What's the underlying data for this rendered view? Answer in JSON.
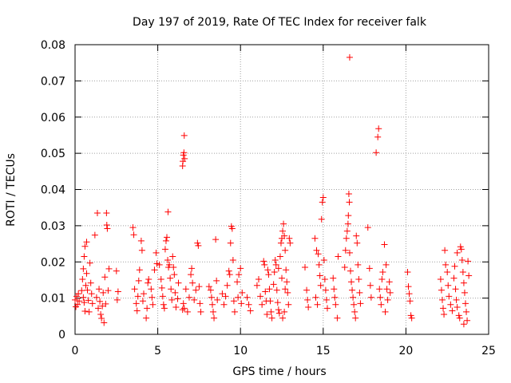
{
  "chart_data": {
    "type": "scatter",
    "title": "Day 197 of 2019, Rate Of TEC Index for receiver falk",
    "xlabel": "GPS time / hours",
    "ylabel": "ROTI / TECUs",
    "xlim": [
      0,
      25
    ],
    "ylim": [
      0,
      0.08
    ],
    "xticks": [
      0,
      5,
      10,
      15,
      20,
      25
    ],
    "xtick_labels": [
      "0",
      "5",
      "10",
      "15",
      "20",
      "25"
    ],
    "yticks": [
      0,
      0.01,
      0.02,
      0.03,
      0.04,
      0.05,
      0.06,
      0.07,
      0.08
    ],
    "ytick_labels": [
      "0",
      "0.01",
      "0.02",
      "0.03",
      "0.04",
      "0.05",
      "0.06",
      "0.07",
      "0.08"
    ],
    "grid": true,
    "marker": "+",
    "marker_color": "#ff0000",
    "series": [
      {
        "points": [
          [
            0.0,
            0.0095
          ],
          [
            0.1,
            0.0105
          ],
          [
            0.15,
            0.0082
          ],
          [
            0.2,
            0.0112
          ],
          [
            0.25,
            0.0092
          ],
          [
            0.05,
            0.0076
          ],
          [
            0.4,
            0.0121
          ],
          [
            0.45,
            0.0152
          ],
          [
            0.5,
            0.0181
          ],
          [
            0.55,
            0.0215
          ],
          [
            0.6,
            0.0243
          ],
          [
            0.7,
            0.0255
          ],
          [
            0.5,
            0.0102
          ],
          [
            0.55,
            0.0088
          ],
          [
            0.6,
            0.0064
          ],
          [
            0.65,
            0.0135
          ],
          [
            0.7,
            0.0168
          ],
          [
            0.75,
            0.0122
          ],
          [
            0.8,
            0.0094
          ],
          [
            0.85,
            0.0062
          ],
          [
            0.9,
            0.0197
          ],
          [
            0.95,
            0.0142
          ],
          [
            1.0,
            0.0112
          ],
          [
            1.05,
            0.0085
          ],
          [
            1.2,
            0.0274
          ],
          [
            1.35,
            0.0335
          ],
          [
            1.3,
            0.0102
          ],
          [
            1.4,
            0.0072
          ],
          [
            1.45,
            0.0125
          ],
          [
            1.5,
            0.0091
          ],
          [
            1.55,
            0.0055
          ],
          [
            1.6,
            0.0044
          ],
          [
            1.65,
            0.0078
          ],
          [
            1.7,
            0.0115
          ],
          [
            1.75,
            0.0032
          ],
          [
            1.8,
            0.0158
          ],
          [
            1.9,
            0.0335
          ],
          [
            1.92,
            0.0302
          ],
          [
            1.95,
            0.0292
          ],
          [
            2.0,
            0.0121
          ],
          [
            2.05,
            0.0181
          ],
          [
            1.85,
            0.0084
          ],
          [
            2.5,
            0.0175
          ],
          [
            2.6,
            0.0118
          ],
          [
            2.55,
            0.0095
          ],
          [
            3.5,
            0.0295
          ],
          [
            3.55,
            0.0275
          ],
          [
            3.6,
            0.0125
          ],
          [
            3.7,
            0.0085
          ],
          [
            3.75,
            0.0065
          ],
          [
            3.8,
            0.0105
          ],
          [
            3.85,
            0.0148
          ],
          [
            3.9,
            0.0178
          ],
          [
            4.0,
            0.0258
          ],
          [
            4.05,
            0.0232
          ],
          [
            4.1,
            0.0092
          ],
          [
            4.15,
            0.0112
          ],
          [
            4.3,
            0.0045
          ],
          [
            4.35,
            0.0072
          ],
          [
            4.4,
            0.0142
          ],
          [
            4.45,
            0.0152
          ],
          [
            4.6,
            0.0125
          ],
          [
            4.65,
            0.0102
          ],
          [
            4.7,
            0.0082
          ],
          [
            4.8,
            0.0178
          ],
          [
            4.9,
            0.0225
          ],
          [
            4.95,
            0.0195
          ],
          [
            5.1,
            0.0192
          ],
          [
            5.2,
            0.0152
          ],
          [
            5.25,
            0.0128
          ],
          [
            5.3,
            0.0105
          ],
          [
            5.35,
            0.0082
          ],
          [
            5.4,
            0.0072
          ],
          [
            5.45,
            0.0235
          ],
          [
            5.5,
            0.0258
          ],
          [
            5.55,
            0.0268
          ],
          [
            5.6,
            0.0205
          ],
          [
            5.62,
            0.0338
          ],
          [
            5.65,
            0.0185
          ],
          [
            5.7,
            0.0192
          ],
          [
            5.75,
            0.0155
          ],
          [
            5.8,
            0.0125
          ],
          [
            5.85,
            0.0095
          ],
          [
            5.9,
            0.0215
          ],
          [
            5.95,
            0.0185
          ],
          [
            6.0,
            0.0165
          ],
          [
            6.05,
            0.0115
          ],
          [
            6.1,
            0.0075
          ],
          [
            6.2,
            0.0098
          ],
          [
            6.25,
            0.0142
          ],
          [
            6.5,
            0.0465
          ],
          [
            6.52,
            0.0478
          ],
          [
            6.55,
            0.0495
          ],
          [
            6.58,
            0.0502
          ],
          [
            6.6,
            0.0549
          ],
          [
            6.62,
            0.0485
          ],
          [
            6.5,
            0.0068
          ],
          [
            6.55,
            0.0085
          ],
          [
            6.6,
            0.0072
          ],
          [
            6.7,
            0.0125
          ],
          [
            6.8,
            0.0062
          ],
          [
            6.9,
            0.0102
          ],
          [
            7.0,
            0.0165
          ],
          [
            7.05,
            0.0182
          ],
          [
            7.1,
            0.0142
          ],
          [
            7.2,
            0.0095
          ],
          [
            7.3,
            0.0122
          ],
          [
            7.4,
            0.0252
          ],
          [
            7.45,
            0.0245
          ],
          [
            7.5,
            0.0132
          ],
          [
            7.55,
            0.0085
          ],
          [
            7.6,
            0.0062
          ],
          [
            8.1,
            0.0132
          ],
          [
            8.2,
            0.0122
          ],
          [
            8.25,
            0.0102
          ],
          [
            8.3,
            0.0082
          ],
          [
            8.35,
            0.0062
          ],
          [
            8.4,
            0.0045
          ],
          [
            8.5,
            0.0262
          ],
          [
            8.55,
            0.0148
          ],
          [
            8.6,
            0.0095
          ],
          [
            8.9,
            0.0112
          ],
          [
            9.0,
            0.0082
          ],
          [
            9.1,
            0.0105
          ],
          [
            9.2,
            0.0135
          ],
          [
            9.3,
            0.0175
          ],
          [
            9.35,
            0.0165
          ],
          [
            9.4,
            0.0252
          ],
          [
            9.45,
            0.0298
          ],
          [
            9.5,
            0.0292
          ],
          [
            9.55,
            0.0205
          ],
          [
            9.6,
            0.0092
          ],
          [
            9.65,
            0.0062
          ],
          [
            9.8,
            0.0145
          ],
          [
            9.85,
            0.0102
          ],
          [
            9.9,
            0.0165
          ],
          [
            10.0,
            0.0182
          ],
          [
            10.05,
            0.0085
          ],
          [
            10.1,
            0.0115
          ],
          [
            10.4,
            0.0102
          ],
          [
            10.5,
            0.0082
          ],
          [
            10.6,
            0.0065
          ],
          [
            11.0,
            0.0135
          ],
          [
            11.1,
            0.0152
          ],
          [
            11.2,
            0.0105
          ],
          [
            11.3,
            0.0082
          ],
          [
            11.4,
            0.0202
          ],
          [
            11.45,
            0.0192
          ],
          [
            11.5,
            0.0118
          ],
          [
            11.55,
            0.0092
          ],
          [
            11.6,
            0.0055
          ],
          [
            11.65,
            0.0178
          ],
          [
            11.7,
            0.0165
          ],
          [
            11.75,
            0.0125
          ],
          [
            11.8,
            0.0092
          ],
          [
            11.85,
            0.0062
          ],
          [
            11.9,
            0.0045
          ],
          [
            12.0,
            0.0138
          ],
          [
            12.05,
            0.0172
          ],
          [
            12.1,
            0.0205
          ],
          [
            12.15,
            0.0192
          ],
          [
            12.2,
            0.0122
          ],
          [
            12.25,
            0.0088
          ],
          [
            12.3,
            0.0068
          ],
          [
            12.35,
            0.0058
          ],
          [
            12.4,
            0.0215
          ],
          [
            12.45,
            0.0252
          ],
          [
            12.5,
            0.0265
          ],
          [
            12.55,
            0.0285
          ],
          [
            12.6,
            0.0305
          ],
          [
            12.65,
            0.0272
          ],
          [
            12.7,
            0.0232
          ],
          [
            12.75,
            0.0178
          ],
          [
            12.8,
            0.0145
          ],
          [
            12.85,
            0.0115
          ],
          [
            12.9,
            0.0082
          ],
          [
            12.95,
            0.0265
          ],
          [
            13.0,
            0.0252
          ],
          [
            12.3,
            0.0182
          ],
          [
            12.5,
            0.0155
          ],
          [
            12.7,
            0.0125
          ],
          [
            12.55,
            0.0045
          ],
          [
            12.65,
            0.0062
          ],
          [
            13.9,
            0.0185
          ],
          [
            14.0,
            0.0122
          ],
          [
            14.05,
            0.0095
          ],
          [
            14.1,
            0.0075
          ],
          [
            14.5,
            0.0265
          ],
          [
            14.6,
            0.0232
          ],
          [
            14.7,
            0.0222
          ],
          [
            14.75,
            0.0192
          ],
          [
            14.8,
            0.0162
          ],
          [
            14.85,
            0.0135
          ],
          [
            14.9,
            0.0318
          ],
          [
            14.95,
            0.0365
          ],
          [
            15.0,
            0.0378
          ],
          [
            15.05,
            0.0205
          ],
          [
            15.1,
            0.0152
          ],
          [
            15.15,
            0.0122
          ],
          [
            15.2,
            0.0095
          ],
          [
            15.25,
            0.0072
          ],
          [
            14.55,
            0.0102
          ],
          [
            14.65,
            0.0082
          ],
          [
            15.6,
            0.0155
          ],
          [
            15.65,
            0.0125
          ],
          [
            15.7,
            0.0102
          ],
          [
            15.75,
            0.0082
          ],
          [
            15.85,
            0.0045
          ],
          [
            15.9,
            0.0215
          ],
          [
            16.3,
            0.0185
          ],
          [
            16.35,
            0.0232
          ],
          [
            16.4,
            0.0265
          ],
          [
            16.45,
            0.0285
          ],
          [
            16.5,
            0.0305
          ],
          [
            16.52,
            0.0328
          ],
          [
            16.55,
            0.0388
          ],
          [
            16.58,
            0.0365
          ],
          [
            16.6,
            0.0225
          ],
          [
            16.65,
            0.0175
          ],
          [
            16.7,
            0.0145
          ],
          [
            16.75,
            0.0122
          ],
          [
            16.8,
            0.0102
          ],
          [
            16.85,
            0.0082
          ],
          [
            16.9,
            0.0062
          ],
          [
            16.95,
            0.0045
          ],
          [
            17.0,
            0.0272
          ],
          [
            17.05,
            0.0252
          ],
          [
            17.1,
            0.0192
          ],
          [
            17.15,
            0.0152
          ],
          [
            17.2,
            0.0115
          ],
          [
            17.25,
            0.0085
          ],
          [
            16.6,
            0.0765
          ],
          [
            17.7,
            0.0295
          ],
          [
            17.8,
            0.0182
          ],
          [
            17.85,
            0.0135
          ],
          [
            17.9,
            0.0102
          ],
          [
            18.2,
            0.0502
          ],
          [
            18.3,
            0.0545
          ],
          [
            18.35,
            0.0568
          ],
          [
            18.4,
            0.0125
          ],
          [
            18.45,
            0.0102
          ],
          [
            18.5,
            0.0082
          ],
          [
            18.55,
            0.0152
          ],
          [
            18.6,
            0.0172
          ],
          [
            18.7,
            0.0248
          ],
          [
            18.8,
            0.0192
          ],
          [
            18.85,
            0.0125
          ],
          [
            18.9,
            0.0095
          ],
          [
            19.0,
            0.0145
          ],
          [
            19.05,
            0.0115
          ],
          [
            18.75,
            0.0062
          ],
          [
            20.1,
            0.0172
          ],
          [
            20.15,
            0.0132
          ],
          [
            20.2,
            0.0112
          ],
          [
            20.25,
            0.0092
          ],
          [
            20.3,
            0.0052
          ],
          [
            20.35,
            0.0045
          ],
          [
            22.1,
            0.0152
          ],
          [
            22.15,
            0.0122
          ],
          [
            22.2,
            0.0095
          ],
          [
            22.25,
            0.0072
          ],
          [
            22.3,
            0.0055
          ],
          [
            22.35,
            0.0232
          ],
          [
            22.4,
            0.0192
          ],
          [
            22.5,
            0.0172
          ],
          [
            22.55,
            0.0135
          ],
          [
            22.6,
            0.0105
          ],
          [
            22.7,
            0.0082
          ],
          [
            22.8,
            0.0065
          ],
          [
            22.9,
            0.0155
          ],
          [
            23.0,
            0.0125
          ],
          [
            23.05,
            0.0095
          ],
          [
            23.1,
            0.0075
          ],
          [
            23.2,
            0.0052
          ],
          [
            23.25,
            0.0045
          ],
          [
            23.3,
            0.0242
          ],
          [
            23.35,
            0.0235
          ],
          [
            23.4,
            0.0205
          ],
          [
            23.45,
            0.0172
          ],
          [
            23.5,
            0.0142
          ],
          [
            23.55,
            0.0115
          ],
          [
            23.6,
            0.0085
          ],
          [
            23.65,
            0.0062
          ],
          [
            23.7,
            0.0038
          ],
          [
            23.75,
            0.0202
          ],
          [
            23.8,
            0.0162
          ],
          [
            23.5,
            0.0028
          ],
          [
            23.1,
            0.0225
          ],
          [
            22.95,
            0.0188
          ]
        ]
      }
    ]
  }
}
